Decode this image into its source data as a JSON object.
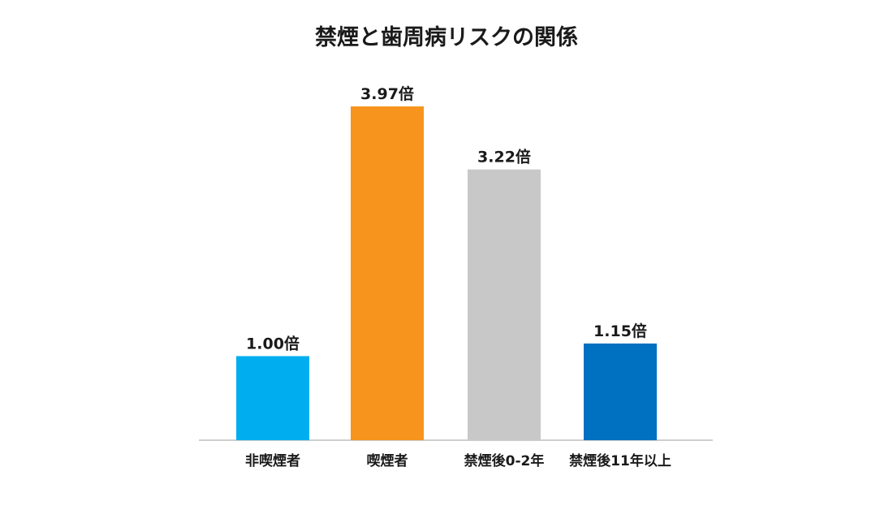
{
  "chart_data": {
    "type": "bar",
    "title": "禁煙と歯周病リスクの関係",
    "xlabel": "",
    "ylabel": "",
    "categories": [
      "非喫煙者",
      "喫煙者",
      "禁煙後0-2年",
      "禁煙後11年以上"
    ],
    "values": [
      1.0,
      3.97,
      3.22,
      1.15
    ],
    "value_labels": [
      "1.00倍",
      "3.97倍",
      "3.22倍",
      "1.15倍"
    ],
    "colors": [
      "#00AEEF",
      "#F7941D",
      "#C8C8C8",
      "#0070C0"
    ],
    "ylim": [
      0,
      3.97
    ],
    "grid": false,
    "legend": "none",
    "axis_color": "#BFBFBF"
  }
}
